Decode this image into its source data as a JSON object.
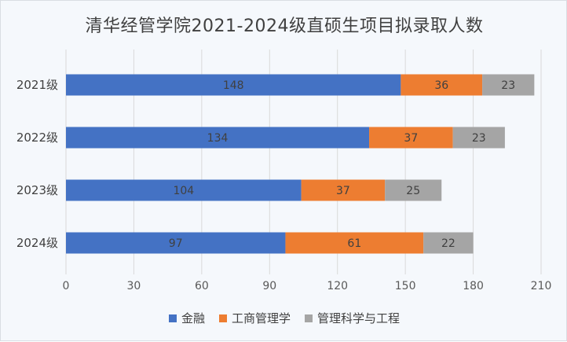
{
  "chart_data": {
    "type": "bar",
    "orientation": "horizontal",
    "stacked": true,
    "title": "清华经管学院2021-2024级直硕生项目拟录取人数",
    "categories": [
      "2021级",
      "2022级",
      "2023级",
      "2024级"
    ],
    "series": [
      {
        "name": "金融",
        "values": [
          148,
          134,
          104,
          97
        ],
        "color": "#4472c4"
      },
      {
        "name": "工商管理学",
        "values": [
          36,
          37,
          37,
          61
        ],
        "color": "#ed7d31"
      },
      {
        "name": "管理科学与工程",
        "values": [
          23,
          23,
          25,
          22
        ],
        "color": "#a5a5a5"
      }
    ],
    "xlim": [
      0,
      210
    ],
    "xticks": [
      0,
      30,
      60,
      90,
      120,
      150,
      180,
      210
    ],
    "grid": "vertical",
    "data_labels": true,
    "legend_position": "bottom"
  }
}
